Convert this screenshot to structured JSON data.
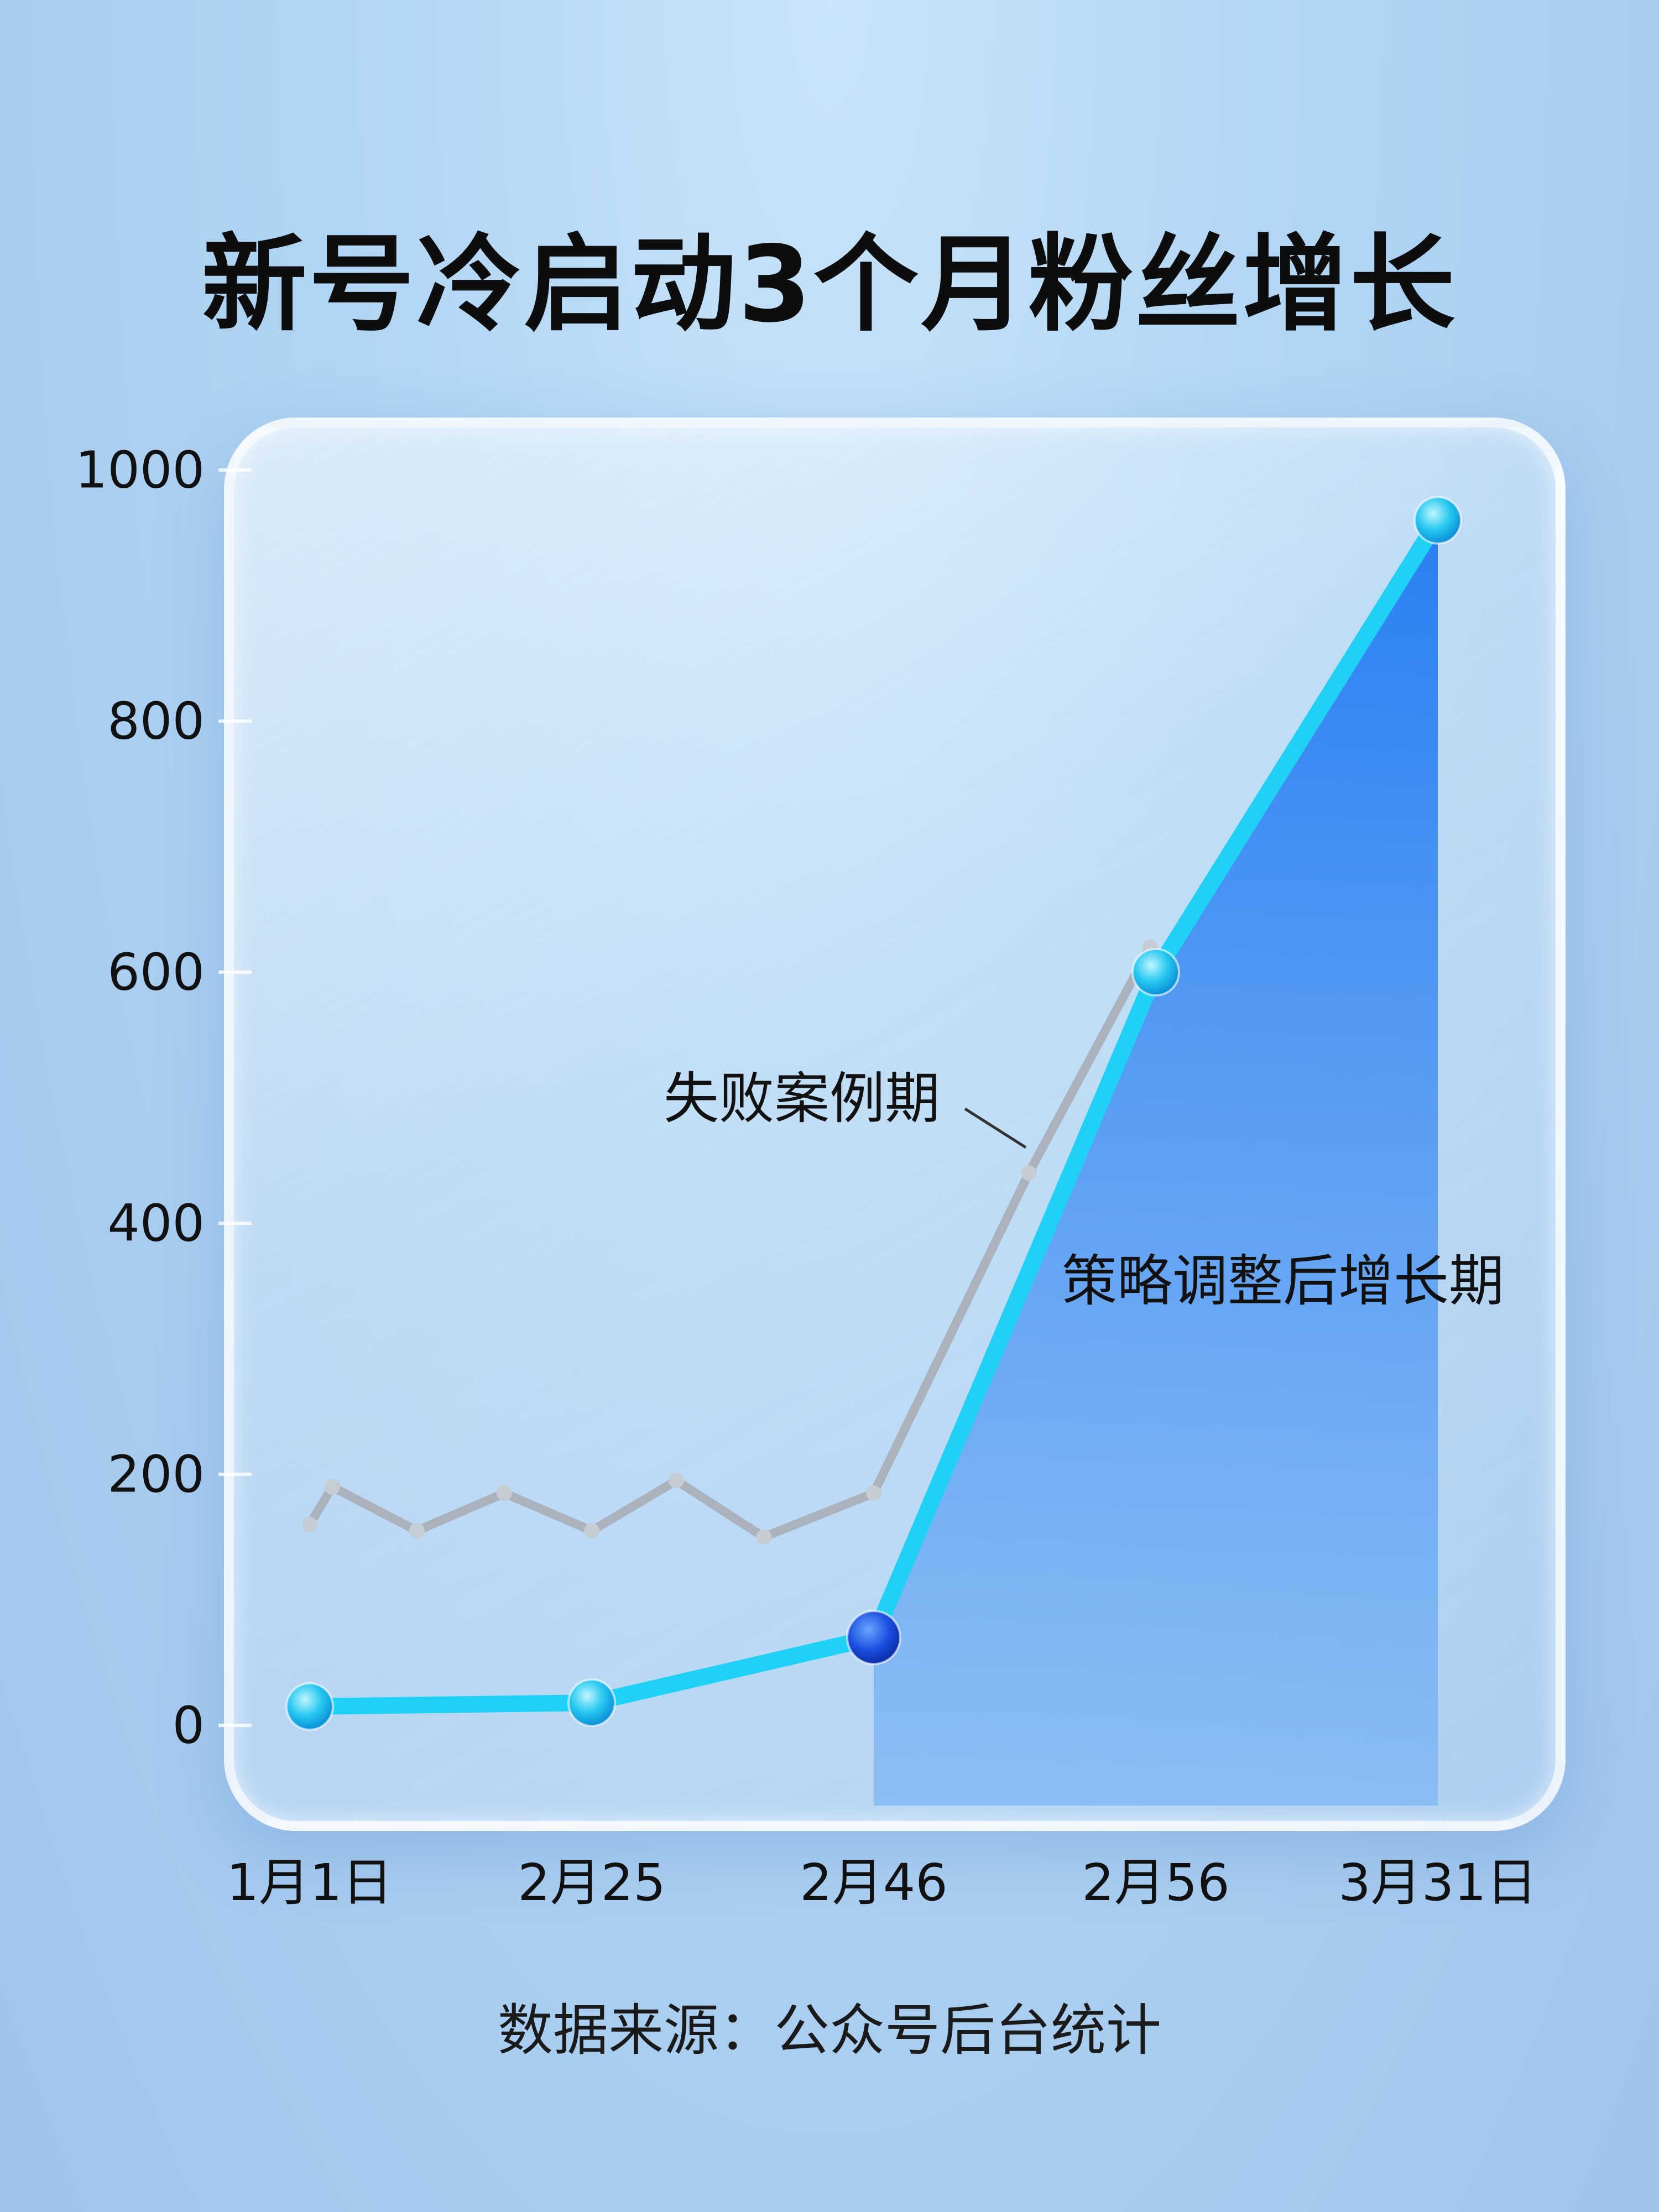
{
  "chart_data": {
    "type": "line",
    "title": "新号冷启动3个月粉丝增长",
    "categories": [
      "1月1日",
      "2月25",
      "2月46",
      "2月56",
      "3月31日"
    ],
    "series": [
      {
        "name": "策略调整后增长期",
        "values": [
          15,
          18,
          70,
          600,
          960
        ],
        "color": "#1fd2f5",
        "fill": "#1a7ef5"
      },
      {
        "name": "失败案例期",
        "x": [
          0,
          0.08,
          0.38,
          0.69,
          1.0,
          1.3,
          1.61,
          2.0,
          2.55,
          2.98
        ],
        "values": [
          160,
          190,
          155,
          185,
          155,
          195,
          150,
          185,
          440,
          620
        ],
        "color": "#a9b2bd"
      }
    ],
    "ylim": [
      0,
      1000
    ],
    "yticks": [
      0,
      200,
      400,
      600,
      800,
      1000
    ],
    "ytick_labels": [
      "0",
      "200",
      "400",
      "600",
      "800",
      "1000"
    ],
    "grid": false,
    "annotations": [
      {
        "text": "失败案例期"
      },
      {
        "text": "策略调整后增长期"
      }
    ]
  },
  "footer": {
    "source": "数据来源：公众号后台统计"
  }
}
